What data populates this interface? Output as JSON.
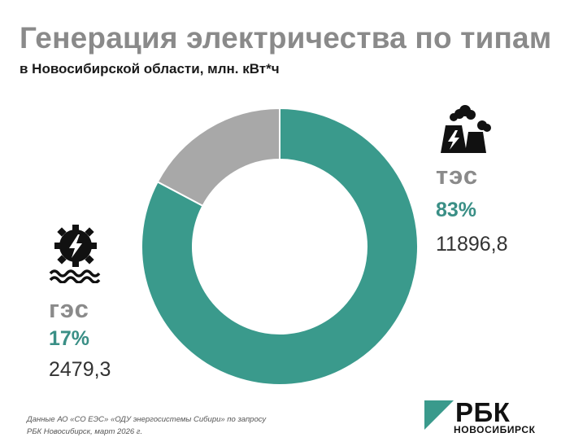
{
  "chart_data": {
    "type": "pie",
    "title": "Генерация электричества по типам",
    "subtitle": "в Новосибирской области, млн. кВт*ч",
    "slices": [
      {
        "name": "тэс",
        "percent_label": "83%",
        "value": 11896.8,
        "value_label": "11896,8",
        "color": "#3a9a8c"
      },
      {
        "name": "гэс",
        "percent_label": "17%",
        "value": 2479.3,
        "value_label": "2479,3",
        "color": "#a8a8a8"
      }
    ]
  },
  "icons": {
    "tes": "power-plant-icon",
    "ges": "hydro-turbine-icon"
  },
  "source": {
    "line1": "Данные АО «СО ЕЭС» «ОДУ энергосистемы Сибири» по запросу",
    "line2": "РБК Новосибирск, март 2026 г."
  },
  "logo": {
    "brand": "РБК",
    "region": "НОВОСИБИРСК",
    "color": "#3a9a8c"
  }
}
